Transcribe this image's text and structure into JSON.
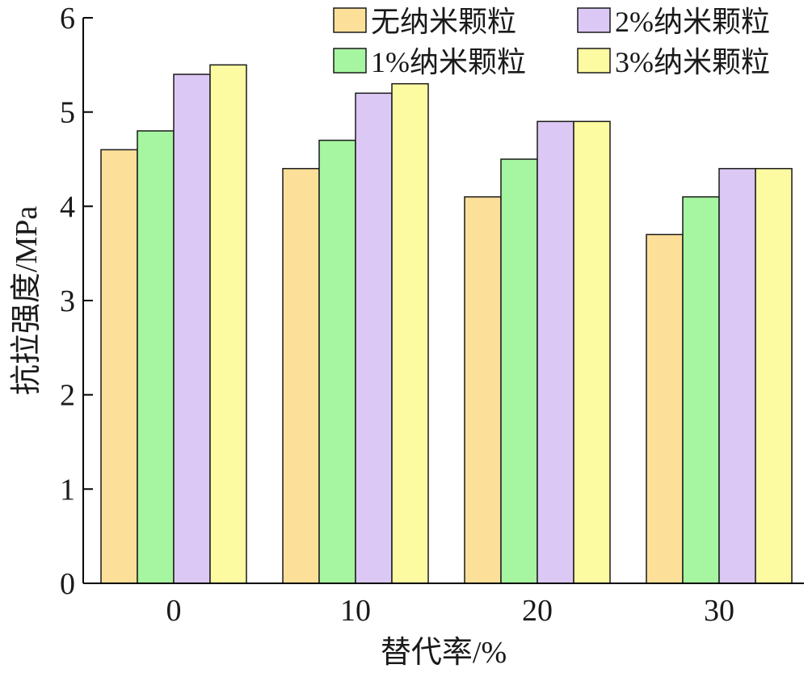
{
  "chart_data": {
    "type": "bar",
    "categories": [
      "0",
      "10",
      "20",
      "30"
    ],
    "series": [
      {
        "name": "无纳米颗粒",
        "color": "#FCE09A",
        "values": [
          4.6,
          4.4,
          4.1,
          3.7
        ]
      },
      {
        "name": "1%纳米颗粒",
        "color": "#A6F5A0",
        "values": [
          4.8,
          4.7,
          4.5,
          4.1
        ]
      },
      {
        "name": "2%纳米颗粒",
        "color": "#DCC8F5",
        "values": [
          5.4,
          5.2,
          4.9,
          4.4
        ]
      },
      {
        "name": "3%纳米颗粒",
        "color": "#FDFBA2",
        "values": [
          5.5,
          5.3,
          4.9,
          4.4
        ]
      }
    ],
    "xlabel": "替代率/%",
    "ylabel": "抗拉强度/MPa",
    "ylim": [
      0,
      6
    ],
    "yticks": [
      0,
      1,
      2,
      3,
      4,
      5,
      6
    ],
    "grid": false,
    "legend_position": "top-right"
  }
}
